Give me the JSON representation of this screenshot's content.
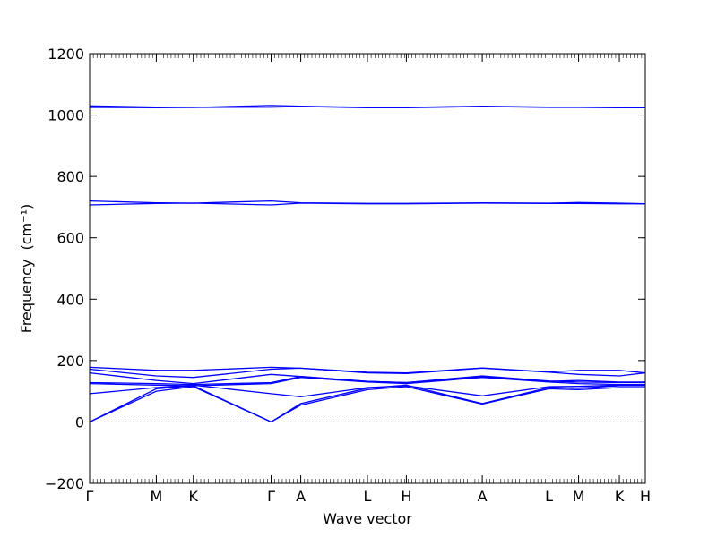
{
  "chart_data": {
    "type": "line",
    "title": "",
    "xlabel": "Wave vector",
    "ylabel": "Frequency",
    "ylabel_unit": "(cm⁻¹)",
    "ylim": [
      -200,
      1200
    ],
    "y_ticks": [
      -200,
      0,
      200,
      400,
      600,
      800,
      1000,
      1200
    ],
    "x_range": [
      0,
      15
    ],
    "x_ticks": [
      {
        "label": "Γ",
        "x": 0
      },
      {
        "label": "M",
        "x": 1.8
      },
      {
        "label": "K",
        "x": 2.8
      },
      {
        "label": "Γ",
        "x": 4.9
      },
      {
        "label": "A",
        "x": 5.7
      },
      {
        "label": "L",
        "x": 7.5
      },
      {
        "label": "H",
        "x": 8.55
      },
      {
        "label": "A",
        "x": 10.6
      },
      {
        "label": "L",
        "x": 12.4
      },
      {
        "label": "M",
        "x": 13.2
      },
      {
        "label": "K",
        "x": 14.3
      },
      {
        "label": "H",
        "x": 15
      }
    ],
    "zero_line": true,
    "color": "#0000ff",
    "series": [
      {
        "x": [
          0,
          1.8,
          2.8,
          4.9,
          5.7,
          7.5,
          8.55,
          10.6,
          12.4,
          13.2,
          14.3,
          15
        ],
        "values": [
          0,
          100,
          115,
          0,
          55,
          105,
          115,
          58,
          108,
          105,
          112,
          112
        ]
      },
      {
        "x": [
          0,
          1.8,
          2.8,
          4.9,
          5.7,
          7.5,
          8.55,
          10.6,
          12.4,
          13.2,
          14.3,
          15
        ],
        "values": [
          0,
          108,
          118,
          0,
          60,
          110,
          120,
          60,
          112,
          110,
          118,
          118
        ]
      },
      {
        "x": [
          0,
          1.8,
          2.8,
          4.9,
          5.7,
          7.5,
          8.55,
          10.6,
          12.4,
          13.2,
          14.3,
          15
        ],
        "values": [
          92,
          112,
          120,
          92,
          82,
          112,
          118,
          85,
          115,
          116,
          120,
          120
        ]
      },
      {
        "x": [
          0,
          1.8,
          2.8,
          4.9,
          5.7,
          7.5,
          8.55,
          10.6,
          12.4,
          13.2,
          14.3,
          15
        ],
        "values": [
          125,
          120,
          118,
          125,
          145,
          130,
          125,
          145,
          130,
          125,
          122,
          122
        ]
      },
      {
        "x": [
          0,
          1.8,
          2.8,
          4.9,
          5.7,
          7.5,
          8.55,
          10.6,
          12.4,
          13.2,
          14.3,
          15
        ],
        "values": [
          128,
          125,
          122,
          128,
          148,
          132,
          128,
          150,
          133,
          130,
          128,
          128
        ]
      },
      {
        "x": [
          0,
          1.8,
          2.8,
          4.9,
          5.7,
          7.5,
          8.55,
          10.6,
          12.4,
          13.2,
          14.3,
          15
        ],
        "values": [
          160,
          135,
          125,
          155,
          148,
          132,
          128,
          148,
          132,
          135,
          130,
          130
        ]
      },
      {
        "x": [
          0,
          1.8,
          2.8,
          4.9,
          5.7,
          7.5,
          8.55,
          10.6,
          12.4,
          13.2,
          14.3,
          15
        ],
        "values": [
          172,
          150,
          145,
          172,
          175,
          160,
          158,
          175,
          162,
          155,
          150,
          160
        ]
      },
      {
        "x": [
          0,
          1.8,
          2.8,
          4.9,
          5.7,
          7.5,
          8.55,
          10.6,
          12.4,
          13.2,
          14.3,
          15
        ],
        "values": [
          178,
          168,
          168,
          178,
          175,
          162,
          160,
          176,
          163,
          168,
          168,
          160
        ]
      },
      {
        "x": [
          0,
          1.8,
          2.8,
          4.9,
          5.7,
          7.5,
          8.55,
          10.6,
          12.4,
          13.2,
          14.3,
          15
        ],
        "values": [
          707,
          712,
          713,
          707,
          713,
          711,
          711,
          713,
          712,
          712,
          711,
          711
        ]
      },
      {
        "x": [
          0,
          1.8,
          2.8,
          4.9,
          5.7,
          7.5,
          8.55,
          10.6,
          12.4,
          13.2,
          14.3,
          15
        ],
        "values": [
          720,
          714,
          713,
          720,
          714,
          712,
          712,
          714,
          713,
          715,
          713,
          711
        ]
      },
      {
        "x": [
          0,
          1.8,
          2.8,
          4.9,
          5.7,
          7.5,
          8.55,
          10.6,
          12.4,
          13.2,
          14.3,
          15
        ],
        "values": [
          1025,
          1024,
          1025,
          1026,
          1028,
          1024,
          1024,
          1028,
          1025,
          1025,
          1024,
          1024
        ]
      },
      {
        "x": [
          0,
          1.8,
          2.8,
          4.9,
          5.7,
          7.5,
          8.55,
          10.6,
          12.4,
          13.2,
          14.3,
          15
        ],
        "values": [
          1030,
          1026,
          1025,
          1031,
          1029,
          1025,
          1025,
          1029,
          1026,
          1026,
          1025,
          1024
        ]
      }
    ]
  }
}
